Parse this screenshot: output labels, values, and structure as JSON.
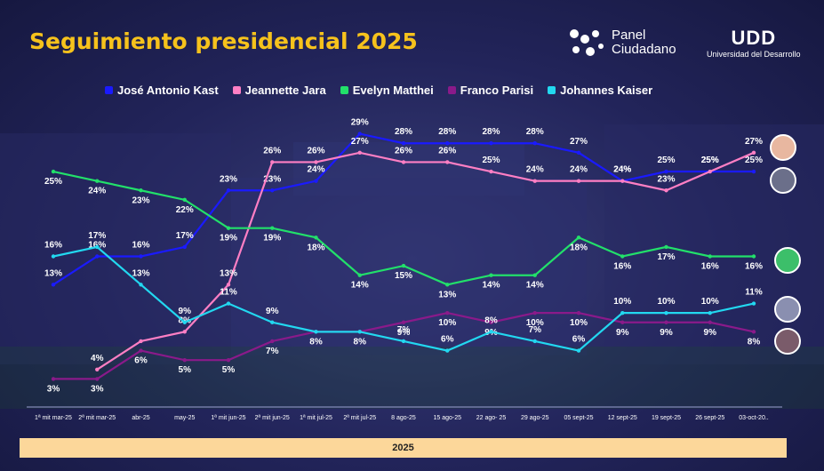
{
  "header": {
    "title": "Seguimiento presidencial 2025",
    "logo_panel_line1": "Panel",
    "logo_panel_line2": "Ciudadano",
    "logo_udd_big": "UDD",
    "logo_udd_small": "Universidad del Desarrollo"
  },
  "footer": {
    "year_label": "2025"
  },
  "colors": {
    "kast": "#1a1aff",
    "jara": "#ff7fc4",
    "matthei": "#22e06a",
    "parisi": "#8a1a8a",
    "kaiser": "#22d8f0",
    "title": "#f6c21c"
  },
  "chart_data": {
    "type": "line",
    "x": [
      "1ª mit mar-25",
      "2ª mit mar-25",
      "abr-25",
      "may-25",
      "1ª mit jun-25",
      "2ª mit jun-25",
      "1ª mit jul-25",
      "2ª mit jul-25",
      "8 ago-25",
      "15 ago-25",
      "22 ago- 25",
      "29 ago-25",
      "05 sept-25",
      "12 sept-25",
      "19 sept-25",
      "26 sept-25",
      "03-oct-20.."
    ],
    "legend_position": "top",
    "grid": false,
    "series": [
      {
        "name": "José Antonio Kast",
        "color": "#1a1aff",
        "values": [
          13,
          16,
          16,
          17,
          23,
          23,
          24,
          29,
          28,
          28,
          28,
          28,
          27,
          24,
          25,
          25,
          25
        ],
        "labels": [
          "13%",
          "16%",
          "16%",
          "17%",
          "23%",
          "23%",
          "24%",
          "29%",
          "28%",
          "28%",
          "28%",
          "28%",
          "27%",
          "24%",
          "25%",
          "25%",
          "25%"
        ]
      },
      {
        "name": "Jeannette Jara",
        "color": "#ff7fc4",
        "values": [
          null,
          4,
          7,
          8,
          13,
          26,
          26,
          27,
          26,
          26,
          25,
          24,
          24,
          24,
          23,
          25,
          27
        ],
        "labels": [
          "",
          "4%",
          "",
          "8%",
          "13%",
          "26%",
          "26%",
          "27%",
          "26%",
          "26%",
          "25%",
          "24%",
          "24%",
          "24%",
          "23%",
          "25%",
          "27%"
        ]
      },
      {
        "name": "Evelyn Matthei",
        "color": "#22e06a",
        "values": [
          25,
          24,
          23,
          22,
          19,
          19,
          18,
          14,
          15,
          13,
          14,
          14,
          18,
          16,
          17,
          16,
          16
        ],
        "labels": [
          "25%",
          "24%",
          "23%",
          "22%",
          "19%",
          "19%",
          "18%",
          "14%",
          "15%",
          "13%",
          "14%",
          "14%",
          "18%",
          "16%",
          "17%",
          "16%",
          "16%"
        ]
      },
      {
        "name": "Franco Parisi",
        "color": "#8a1a8a",
        "values": [
          3,
          3,
          6,
          5,
          5,
          7,
          8,
          8,
          9,
          10,
          9,
          10,
          10,
          9,
          9,
          9,
          8
        ],
        "labels": [
          "3%",
          "3%",
          "6%",
          "5%",
          "5%",
          "7%",
          "8%",
          "8%",
          "9%",
          "10%",
          "9%",
          "10%",
          "10%",
          "9%",
          "9%",
          "9%",
          "8%"
        ]
      },
      {
        "name": "Johannes Kaiser",
        "color": "#22d8f0",
        "values": [
          16,
          17,
          13,
          9,
          11,
          9,
          8,
          8,
          7,
          6,
          8,
          7,
          6,
          10,
          10,
          10,
          11
        ],
        "labels": [
          "16%",
          "17%",
          "13%",
          "9%",
          "11%",
          "9%",
          "",
          "",
          "7%",
          "6%",
          "8%",
          "7%",
          "6%",
          "10%",
          "10%",
          "10%",
          "11%"
        ]
      }
    ],
    "ylim": [
      2,
      30
    ],
    "title": "Seguimiento presidencial 2025",
    "xlabel": "2025",
    "ylabel": ""
  }
}
